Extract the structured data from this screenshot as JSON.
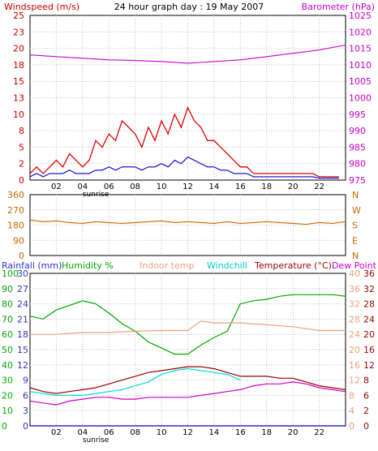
{
  "chart_data": [
    {
      "type": "line",
      "title": "24 hour graph day : 19 May 2007",
      "ylabel_left": "Windspeed (m/s)",
      "ylabel_right": "Barometer (hPa)",
      "x_ticks": [
        "02",
        "04",
        "06",
        "08",
        "10",
        "12",
        "14",
        "16",
        "18",
        "20",
        "22"
      ],
      "x_annotation": "sunrise",
      "xlim": [
        0,
        24
      ],
      "ylim_left": [
        0,
        25
      ],
      "ylim_right": [
        975,
        1025
      ],
      "y_ticks_left": [
        "0",
        "2",
        "5",
        "8",
        "10",
        "13",
        "15",
        "18",
        "20",
        "23",
        "25"
      ],
      "y_ticks_right": [
        "975",
        "980",
        "985",
        "990",
        "995",
        "1000",
        "1005",
        "1010",
        "1015",
        "1020",
        "1025"
      ],
      "grid": true,
      "colors": {
        "gust": "#e00000",
        "average": "#0000cc",
        "barometer": "#cc00cc"
      },
      "series": [
        {
          "color_key": "gust",
          "x": [
            0,
            0.5,
            1,
            1.5,
            2,
            2.5,
            3,
            3.5,
            4,
            4.5,
            5,
            5.5,
            6,
            6.5,
            7,
            7.5,
            8,
            8.5,
            9,
            9.5,
            10,
            10.5,
            11,
            11.5,
            12,
            12.5,
            13,
            13.5,
            14,
            14.5,
            15,
            15.5,
            16,
            16.5,
            17,
            17.5,
            18,
            18.5,
            19,
            19.5,
            20,
            20.5,
            21,
            21.5,
            22,
            22.5,
            23,
            23.5
          ],
          "values": [
            1,
            2,
            1,
            2,
            3,
            2,
            4,
            3,
            2,
            3,
            6,
            5,
            7,
            6,
            9,
            8,
            7,
            5,
            8,
            6,
            9,
            7,
            10,
            8,
            11,
            9,
            8,
            6,
            6,
            5,
            4,
            3,
            2,
            2,
            1,
            1,
            1,
            1,
            1,
            1,
            1,
            1,
            1,
            1,
            0.5,
            0.5,
            0.5,
            0.5
          ]
        },
        {
          "color_key": "average",
          "x": [
            0,
            0.5,
            1,
            1.5,
            2,
            2.5,
            3,
            3.5,
            4,
            4.5,
            5,
            5.5,
            6,
            6.5,
            7,
            7.5,
            8,
            8.5,
            9,
            9.5,
            10,
            10.5,
            11,
            11.5,
            12,
            12.5,
            13,
            13.5,
            14,
            14.5,
            15,
            15.5,
            16,
            16.5,
            17,
            17.5,
            18,
            18.5,
            19,
            19.5,
            20,
            20.5,
            21,
            21.5,
            22,
            22.5,
            23,
            23.5
          ],
          "values": [
            0.5,
            1,
            0.5,
            1,
            1,
            1,
            1.5,
            1,
            1,
            1,
            1.5,
            1.5,
            2,
            1.5,
            2,
            2,
            2,
            1.5,
            2,
            2,
            2.5,
            2,
            3,
            2.5,
            3.5,
            3,
            2.5,
            2,
            2,
            1.5,
            1.5,
            1,
            1,
            1,
            0.5,
            0.5,
            0.5,
            0.5,
            0.5,
            0.5,
            0.5,
            0.5,
            0.5,
            0.5,
            0.3,
            0.3,
            0.3,
            0.3
          ]
        },
        {
          "color_key": "barometer",
          "axis": "right",
          "x": [
            0,
            2,
            4,
            6,
            8,
            10,
            12,
            14,
            16,
            18,
            20,
            22,
            24
          ],
          "values": [
            1013,
            1012.5,
            1012,
            1011.5,
            1011.3,
            1011,
            1010.5,
            1011,
            1011.5,
            1012.5,
            1013.5,
            1014.5,
            1016
          ]
        }
      ]
    },
    {
      "type": "line",
      "xlim": [
        0,
        24
      ],
      "ylim": [
        0,
        360
      ],
      "y_ticks_left": [
        "0",
        "90",
        "180",
        "270",
        "360"
      ],
      "y_ticks_right": [
        "N",
        "E",
        "S",
        "W",
        "N"
      ],
      "grid": true,
      "colors": {
        "direction": "#cc6600"
      },
      "series": [
        {
          "color_key": "direction",
          "x": [
            0,
            1,
            2,
            3,
            4,
            5,
            6,
            7,
            8,
            9,
            10,
            11,
            12,
            13,
            14,
            15,
            16,
            17,
            18,
            19,
            20,
            21,
            22,
            23,
            24
          ],
          "values": [
            210,
            200,
            205,
            195,
            190,
            200,
            195,
            190,
            195,
            200,
            205,
            195,
            200,
            195,
            190,
            200,
            190,
            195,
            200,
            195,
            190,
            185,
            195,
            190,
            200
          ]
        }
      ]
    },
    {
      "type": "line",
      "legend": {
        "rainfall": "Rainfall (mm)",
        "humidity": "Humidity %",
        "indoor": "Indoor temp",
        "windchill": "Windchill",
        "temperature": "Temperature (°C)",
        "dewpoint": "Dew Point"
      },
      "x_ticks": [
        "02",
        "04",
        "06",
        "08",
        "10",
        "12",
        "14",
        "16",
        "18",
        "20",
        "22"
      ],
      "x_annotation": "sunrise",
      "xlim": [
        0,
        24
      ],
      "ylim_rainfall": [
        0,
        30
      ],
      "ylim_humidity": [
        0,
        100
      ],
      "ylim_temperature": [
        0,
        40
      ],
      "y_ticks_rainfall": [
        "0",
        "3",
        "6",
        "9",
        "12",
        "15",
        "18",
        "21",
        "24",
        "27",
        "30"
      ],
      "y_ticks_humidity": [
        "0",
        "10",
        "20",
        "30",
        "40",
        "50",
        "60",
        "70",
        "80",
        "90",
        "100"
      ],
      "y_ticks_indoor": [
        "0",
        "4",
        "8",
        "12",
        "16",
        "20",
        "24",
        "28",
        "32",
        "36",
        "40"
      ],
      "y_ticks_temperature": [
        "0",
        "2",
        "6",
        "8",
        "12",
        "16",
        "20",
        "24",
        "28",
        "32",
        "36"
      ],
      "grid": true,
      "colors": {
        "rainfall": "#0000cc",
        "humidity": "#00aa00",
        "indoor": "#f0a080",
        "windchill": "#00dddd",
        "temperature": "#990000",
        "dewpoint": "#cc00cc"
      },
      "series": [
        {
          "color_key": "humidity",
          "scale": "humidity",
          "x": [
            0,
            1,
            2,
            3,
            4,
            5,
            6,
            7,
            8,
            9,
            10,
            11,
            12,
            13,
            14,
            15,
            16,
            17,
            18,
            19,
            20,
            21,
            22,
            23,
            24
          ],
          "values": [
            72,
            70,
            76,
            79,
            82,
            80,
            74,
            67,
            62,
            55,
            51,
            47,
            47,
            53,
            58,
            62,
            80,
            82,
            83,
            85,
            86,
            86,
            86,
            86,
            85
          ]
        },
        {
          "color_key": "indoor",
          "scale": "temperature",
          "x": [
            0,
            2,
            4,
            6,
            8,
            10,
            12,
            13,
            14,
            16,
            18,
            20,
            22,
            24
          ],
          "values": [
            24,
            24,
            24.5,
            24.5,
            24.8,
            25,
            25,
            27.5,
            27,
            27,
            26.5,
            26,
            25,
            25
          ]
        },
        {
          "color_key": "windchill",
          "scale": "temperature",
          "x": [
            0,
            1,
            2,
            3,
            4,
            5,
            6,
            7,
            8,
            9,
            10,
            11,
            12,
            13,
            14,
            15,
            16
          ],
          "values": [
            9,
            8.5,
            8,
            8,
            8,
            8.5,
            9,
            9.5,
            10.5,
            11.5,
            13.5,
            14.5,
            15,
            14.5,
            14,
            13.5,
            12
          ]
        },
        {
          "color_key": "temperature",
          "scale": "temperature",
          "x": [
            0,
            1,
            2,
            3,
            4,
            5,
            6,
            7,
            8,
            9,
            10,
            11,
            12,
            13,
            14,
            15,
            16,
            17,
            18,
            19,
            20,
            21,
            22,
            23,
            24
          ],
          "values": [
            10,
            9,
            8.5,
            9,
            9.5,
            10,
            11,
            12,
            13,
            14,
            14.5,
            15,
            15.5,
            15.5,
            15,
            14,
            13,
            13,
            13,
            12.5,
            12.5,
            11.5,
            10.5,
            10,
            9.5
          ]
        },
        {
          "color_key": "dewpoint",
          "scale": "temperature",
          "x": [
            0,
            1,
            2,
            3,
            4,
            5,
            6,
            7,
            8,
            9,
            10,
            11,
            12,
            13,
            14,
            15,
            16,
            17,
            18,
            19,
            20,
            21,
            22,
            23,
            24
          ],
          "values": [
            6.5,
            6,
            5.5,
            6.5,
            7,
            7.5,
            7.5,
            7,
            7,
            7.5,
            7.5,
            7.5,
            7.5,
            8,
            8.5,
            9,
            9.5,
            10.5,
            11,
            11,
            11.5,
            11,
            10,
            9.5,
            9
          ]
        },
        {
          "color_key": "rainfall",
          "scale": "rainfall",
          "x": [
            0,
            24
          ],
          "values": [
            0,
            0
          ]
        }
      ]
    }
  ]
}
